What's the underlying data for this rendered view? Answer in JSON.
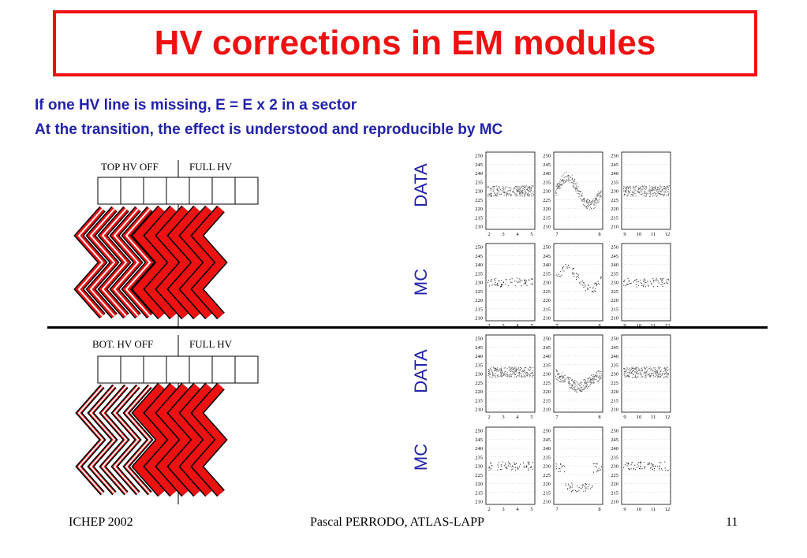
{
  "title": "HV corrections in EM modules",
  "bullets": [
    "If one HV line is missing, E = E x 2 in a sector",
    "At the transition, the effect is understood and reproducible by MC"
  ],
  "diagrams": {
    "top": {
      "left_label": "TOP HV OFF",
      "right_label": "FULL HV"
    },
    "bottom": {
      "left_label": "BOT. HV OFF",
      "right_label": "FULL HV"
    }
  },
  "row_labels": [
    "DATA",
    "MC",
    "DATA",
    "MC"
  ],
  "panel_axis": {
    "y_ticks": [
      "250",
      "245",
      "240",
      "235",
      "230",
      "225",
      "220",
      "215",
      "210"
    ],
    "x_ticks": [
      [
        "2",
        "3",
        "4",
        "5"
      ],
      [
        "7",
        "8"
      ],
      [
        "9",
        "10",
        "11",
        "12"
      ]
    ]
  },
  "footer": {
    "left": "ICHEP 2002",
    "center": "Pascal PERRODO, ATLAS-LAPP",
    "right": "11"
  },
  "colors": {
    "title": "#ee1111",
    "bullets": "#2222aa",
    "accordion": "#ee1111"
  }
}
